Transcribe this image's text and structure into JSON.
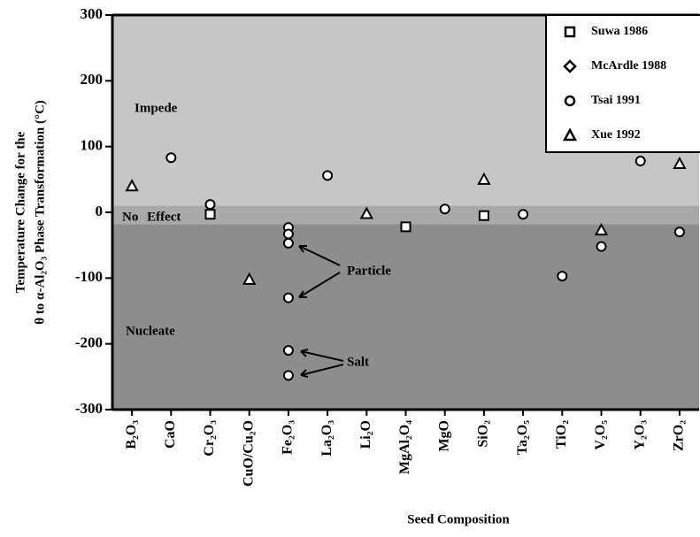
{
  "chart_data": {
    "type": "scatter",
    "ylabel": [
      "Temperature Change for the",
      "θ to α-Al₂O₃ Phase Transformation (°C)"
    ],
    "xlabel": "Seed Composition",
    "categories": [
      "B₂O₃",
      "CaO",
      "Cr₂O₃",
      "CuO/Cu₂O",
      "Fe₂O₃",
      "La₂O₃",
      "Li₂O",
      "MgAl₂O₄",
      "MgO",
      "SiO₂",
      "Ta₂O₅",
      "TiO₂",
      "V₂O₅",
      "Y₂O₃",
      "ZrO₂"
    ],
    "ylim": [
      -300,
      300
    ],
    "yticks": [
      300,
      200,
      100,
      0,
      -100,
      -200,
      -300
    ],
    "regions": [
      {
        "label": "Impede",
        "from": 10,
        "to": 300,
        "color": "#c6c6c6"
      },
      {
        "label": "No Effect",
        "from": -18,
        "to": 10,
        "color": "#a9a9a9"
      },
      {
        "label": "Nucleate",
        "from": -300,
        "to": -18,
        "color": "#8d8d8d"
      }
    ],
    "legend": "upper right",
    "series": [
      {
        "name": "Suwa 1986",
        "marker": "square",
        "x": [
          "Cr₂O₃",
          "MgAl₂O₄",
          "SiO₂"
        ],
        "values": [
          -3,
          -22,
          -5
        ]
      },
      {
        "name": "McArdle 1988",
        "marker": "diamond",
        "x": [],
        "values": []
      },
      {
        "name": "Tsai 1991",
        "marker": "circle",
        "x": [
          "CaO",
          "Cr₂O₃",
          "Fe₂O₃",
          "Fe₂O₃",
          "Fe₂O₃",
          "Fe₂O₃",
          "Fe₂O₃",
          "Fe₂O₃",
          "La₂O₃",
          "MgO",
          "Ta₂O₅",
          "TiO₂",
          "V₂O₅",
          "Y₂O₃",
          "ZrO₂"
        ],
        "values": [
          83,
          12,
          -23,
          -33,
          -47,
          -130,
          -210,
          -248,
          56,
          5,
          -3,
          -97,
          -52,
          78,
          -30
        ]
      },
      {
        "name": "Xue 1992",
        "marker": "triangle",
        "x": [
          "B₂O₃",
          "CuO/Cu₂O",
          "Li₂O",
          "SiO₂",
          "V₂O₅",
          "ZrO₂"
        ],
        "values": [
          40,
          -102,
          -2,
          50,
          -27,
          74
        ]
      }
    ],
    "annotations": [
      "Particle",
      "Salt"
    ]
  }
}
